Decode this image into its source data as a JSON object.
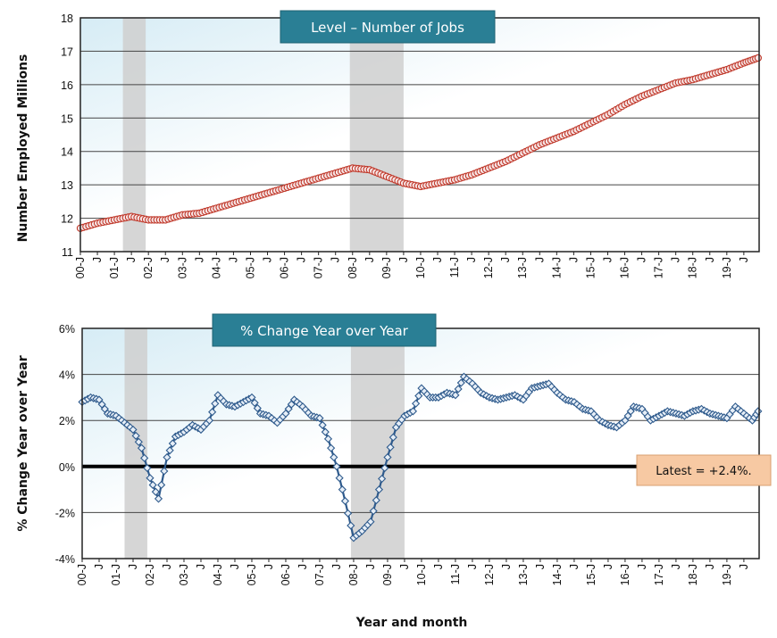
{
  "colors": {
    "level_line": "#c0392b",
    "level_marker_fill": "#f7e6e6",
    "pct_line": "#2e5a8c",
    "pct_marker_fill": "#e6eef7",
    "banner": "#2a7f95",
    "recession": "#cfcfcf",
    "note_bg": "#f7c9a3",
    "note_border": "#d9a070"
  },
  "x_tick_labels": [
    "00-J",
    "J",
    "01-J",
    "J",
    "02-J",
    "J",
    "03-J",
    "J",
    "04-J",
    "J",
    "05-J",
    "J",
    "06-J",
    "J",
    "07-J",
    "J",
    "08-J",
    "J",
    "09-J",
    "J",
    "10-J",
    "J",
    "11-J",
    "J",
    "12-J",
    "J",
    "13-J",
    "J",
    "14-J",
    "J",
    "15-J",
    "J",
    "16-J",
    "J",
    "17-J",
    "J",
    "18-J",
    "J",
    "19-J",
    "J"
  ],
  "x_axis_title": "Year and month",
  "chart_data": [
    {
      "type": "line",
      "title": "Level – Number of Jobs",
      "ylabel": "Number Employed Millions",
      "ylim": [
        11,
        18
      ],
      "yticks": [
        11,
        12,
        13,
        14,
        15,
        16,
        17,
        18
      ],
      "grid": true,
      "x_range": [
        2000.0,
        2019.95
      ],
      "recession_shading": [
        [
          2001.25,
          2001.92
        ],
        [
          2007.92,
          2009.5
        ]
      ],
      "series": [
        {
          "x": [
            2000.0,
            2000.5,
            2001.0,
            2001.5,
            2002.0,
            2002.5,
            2003.0,
            2003.5,
            2004.0,
            2004.5,
            2005.0,
            2005.5,
            2006.0,
            2006.5,
            2007.0,
            2007.5,
            2008.0,
            2008.5,
            2009.0,
            2009.5,
            2010.0,
            2010.5,
            2011.0,
            2011.5,
            2012.0,
            2012.5,
            2013.0,
            2013.5,
            2014.0,
            2014.5,
            2015.0,
            2015.5,
            2016.0,
            2016.5,
            2017.0,
            2017.5,
            2018.0,
            2018.5,
            2019.0,
            2019.5,
            2019.92
          ],
          "values": [
            11.7,
            11.85,
            11.95,
            12.05,
            11.95,
            11.95,
            12.1,
            12.15,
            12.3,
            12.45,
            12.6,
            12.75,
            12.9,
            13.05,
            13.2,
            13.35,
            13.5,
            13.45,
            13.25,
            13.05,
            12.95,
            13.05,
            13.15,
            13.3,
            13.5,
            13.7,
            13.95,
            14.2,
            14.4,
            14.6,
            14.85,
            15.1,
            15.4,
            15.65,
            15.85,
            16.05,
            16.15,
            16.3,
            16.45,
            16.65,
            16.8
          ]
        }
      ]
    },
    {
      "type": "line",
      "title": "% Change Year over Year",
      "ylabel": "% Change Year over Year",
      "ylim": [
        -4,
        6
      ],
      "yticks": [
        -4,
        -2,
        0,
        2,
        4,
        6
      ],
      "ytick_labels": [
        "-4%",
        "-2%",
        "0%",
        "2%",
        "4%",
        "6%"
      ],
      "grid": true,
      "x_range": [
        2000.0,
        2019.95
      ],
      "recession_shading": [
        [
          2001.25,
          2001.92
        ],
        [
          2007.92,
          2009.5
        ]
      ],
      "annotation": "Latest = +2.4%.",
      "series": [
        {
          "x": [
            2000.0,
            2000.25,
            2000.5,
            2000.75,
            2001.0,
            2001.25,
            2001.5,
            2001.75,
            2002.0,
            2002.25,
            2002.5,
            2002.75,
            2003.0,
            2003.25,
            2003.5,
            2003.75,
            2004.0,
            2004.25,
            2004.5,
            2004.75,
            2005.0,
            2005.25,
            2005.5,
            2005.75,
            2006.0,
            2006.25,
            2006.5,
            2006.75,
            2007.0,
            2007.25,
            2007.5,
            2007.75,
            2008.0,
            2008.25,
            2008.5,
            2008.75,
            2009.0,
            2009.25,
            2009.5,
            2009.75,
            2010.0,
            2010.25,
            2010.5,
            2010.75,
            2011.0,
            2011.25,
            2011.5,
            2011.75,
            2012.0,
            2012.25,
            2012.5,
            2012.75,
            2013.0,
            2013.25,
            2013.5,
            2013.75,
            2014.0,
            2014.25,
            2014.5,
            2014.75,
            2015.0,
            2015.25,
            2015.5,
            2015.75,
            2016.0,
            2016.25,
            2016.5,
            2016.75,
            2017.0,
            2017.25,
            2017.5,
            2017.75,
            2018.0,
            2018.25,
            2018.5,
            2018.75,
            2019.0,
            2019.25,
            2019.5,
            2019.75,
            2019.92
          ],
          "values": [
            2.8,
            3.0,
            2.9,
            2.3,
            2.2,
            1.9,
            1.6,
            0.8,
            -0.5,
            -1.4,
            0.4,
            1.3,
            1.5,
            1.8,
            1.6,
            2.0,
            3.1,
            2.7,
            2.6,
            2.8,
            3.0,
            2.3,
            2.2,
            1.9,
            2.3,
            2.9,
            2.6,
            2.2,
            2.1,
            1.2,
            0.0,
            -1.5,
            -3.1,
            -2.8,
            -2.4,
            -1.0,
            0.4,
            1.7,
            2.2,
            2.4,
            3.4,
            3.0,
            3.0,
            3.2,
            3.1,
            3.9,
            3.6,
            3.2,
            3.0,
            2.9,
            3.0,
            3.1,
            2.9,
            3.4,
            3.5,
            3.6,
            3.2,
            2.9,
            2.8,
            2.5,
            2.4,
            2.0,
            1.8,
            1.7,
            2.0,
            2.6,
            2.5,
            2.0,
            2.2,
            2.4,
            2.3,
            2.2,
            2.4,
            2.5,
            2.3,
            2.2,
            2.1,
            2.6,
            2.3,
            2.0,
            2.4
          ]
        }
      ]
    }
  ]
}
